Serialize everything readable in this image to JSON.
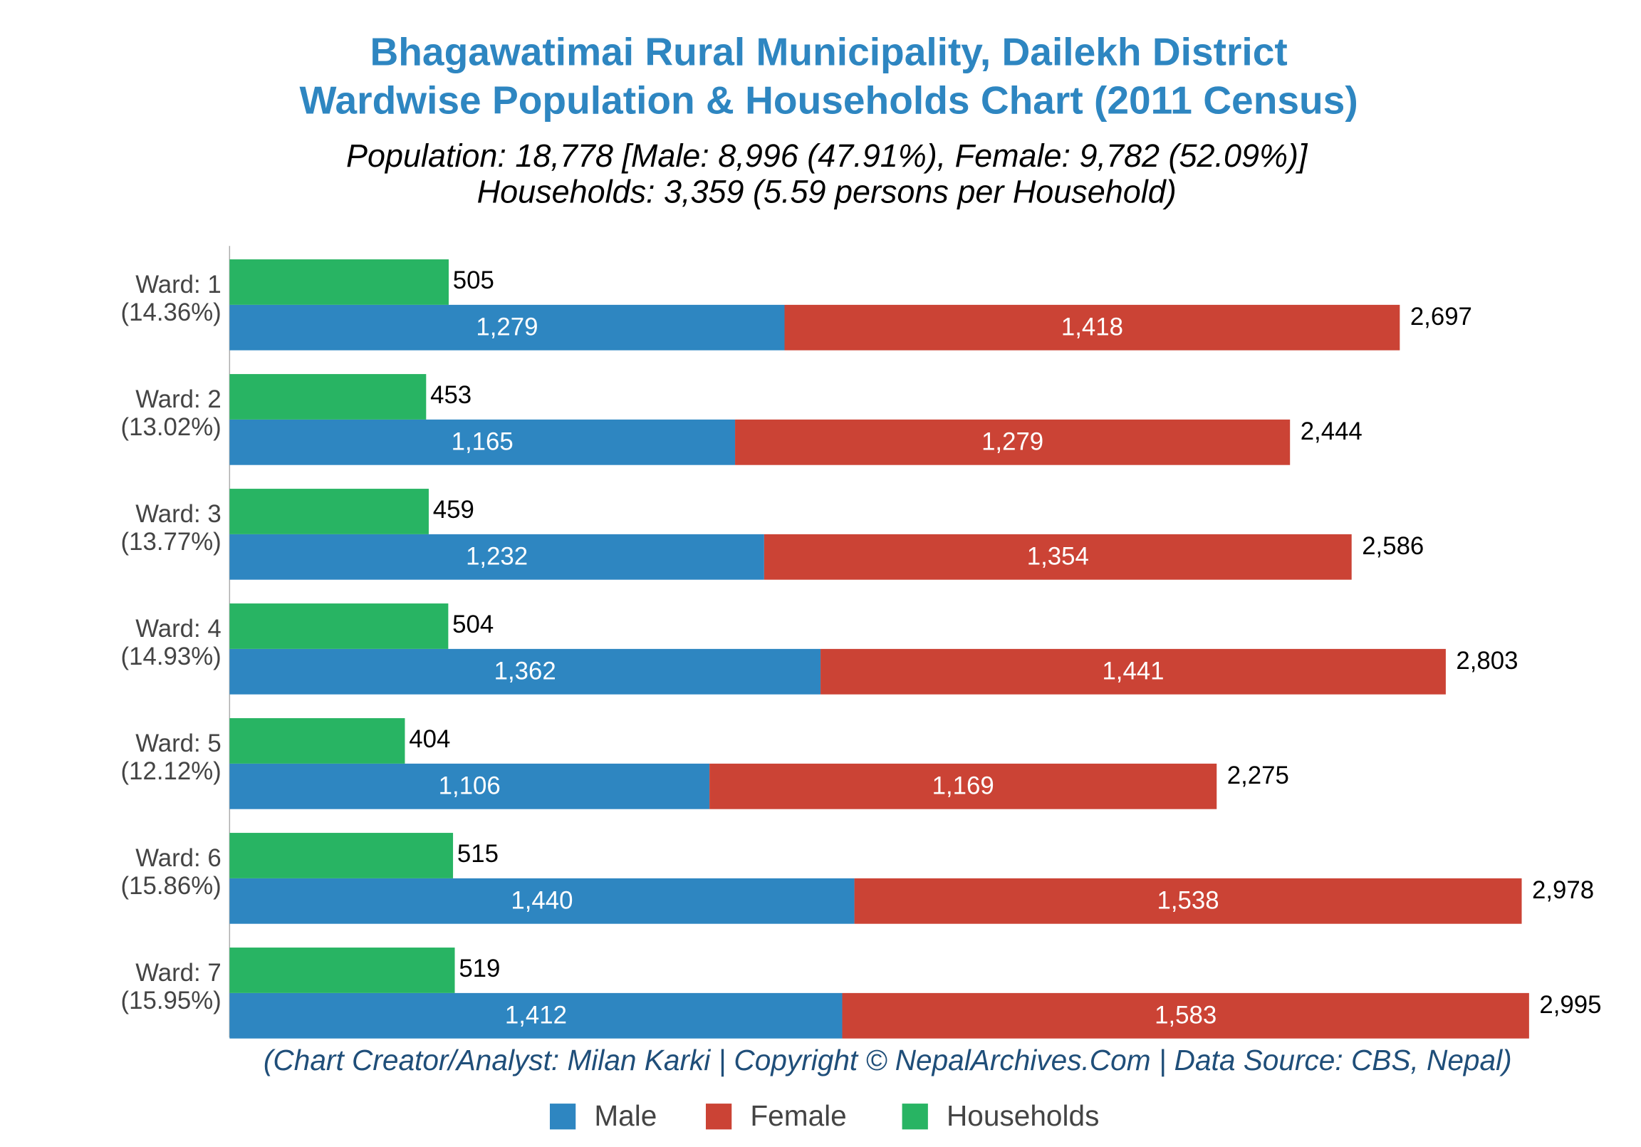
{
  "chart_data": {
    "type": "bar",
    "title": [
      "Bhagawatimai Rural Municipality, Dailekh District",
      "Wardwise Population & Households Chart (2011 Census)"
    ],
    "subtitle": [
      "Population: 18,778 [Male: 8,996 (47.91%), Female: 9,782 (52.09%)]",
      "Households: 3,359 (5.59 persons per Household)"
    ],
    "caption": "(Chart Creator/Analyst: Milan Karki | Copyright © NepalArchives.Com | Data Source: CBS, Nepal)",
    "categories": [
      "Ward: 1",
      "Ward: 2",
      "Ward: 3",
      "Ward: 4",
      "Ward: 5",
      "Ward: 6",
      "Ward: 7"
    ],
    "category_shares": [
      "(14.36%)",
      "(13.02%)",
      "(13.77%)",
      "(14.93%)",
      "(12.12%)",
      "(15.86%)",
      "(15.95%)"
    ],
    "series": [
      {
        "name": "Male",
        "color": "#2e86c1",
        "stack": "population",
        "values": [
          1279,
          1165,
          1232,
          1362,
          1106,
          1440,
          1412
        ],
        "value_labels": [
          "1,279",
          "1,165",
          "1,232",
          "1,362",
          "1,106",
          "1,440",
          "1,412"
        ]
      },
      {
        "name": "Female",
        "color": "#cb4335",
        "stack": "population",
        "values": [
          1418,
          1279,
          1354,
          1441,
          1169,
          1538,
          1583
        ],
        "value_labels": [
          "1,418",
          "1,279",
          "1,354",
          "1,441",
          "1,169",
          "1,538",
          "1,583"
        ]
      },
      {
        "name": "Households",
        "color": "#28b463",
        "stack": "households",
        "values": [
          505,
          453,
          459,
          504,
          404,
          515,
          519
        ],
        "value_labels": [
          "505",
          "453",
          "459",
          "504",
          "404",
          "515",
          "519"
        ]
      }
    ],
    "totals": [
      2697,
      2444,
      2586,
      2803,
      2275,
      2978,
      2995
    ],
    "total_labels": [
      "2,697",
      "2,444",
      "2,586",
      "2,803",
      "2,275",
      "2,978",
      "2,995"
    ],
    "xlim": [
      0,
      3200
    ],
    "legend": "bottom"
  }
}
